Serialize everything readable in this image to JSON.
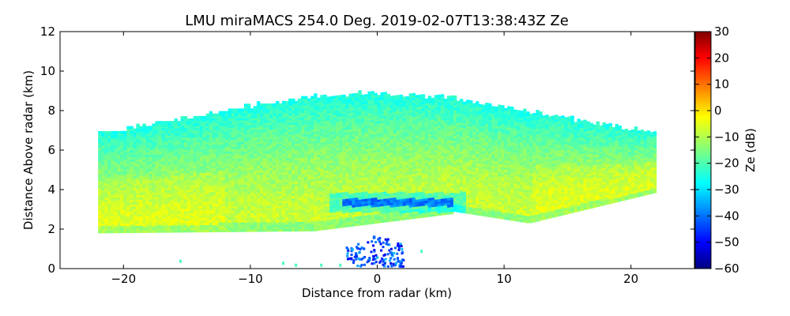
{
  "chart_data": {
    "type": "heatmap",
    "title": "LMU miraMACS 254.0 Deg. 2019-02-07T13:38:43Z  Ze",
    "xlabel": "Distance from radar (km)",
    "ylabel": "Distance Above radar  (km)",
    "xlim": [
      -25,
      25
    ],
    "ylim": [
      0,
      12
    ],
    "xticks": [
      -20,
      -10,
      0,
      10,
      20
    ],
    "xtick_labels": [
      "−20",
      "−10",
      "0",
      "10",
      "20"
    ],
    "yticks": [
      0,
      2,
      4,
      6,
      8,
      10,
      12
    ],
    "ytick_labels": [
      "0",
      "2",
      "4",
      "6",
      "8",
      "10",
      "12"
    ],
    "colorbar": {
      "label": "Ze (dB)",
      "range": [
        -60,
        30
      ],
      "ticks": [
        -60,
        -50,
        -40,
        -30,
        -20,
        -10,
        0,
        10,
        20,
        30
      ],
      "tick_labels": [
        "−60",
        "−50",
        "−40",
        "−30",
        "−20",
        "−10",
        "0",
        "10",
        "20",
        "30"
      ],
      "colormap": "jet"
    },
    "field": {
      "echo_extent_x_km": [
        -22,
        22
      ],
      "cloud_base_left_km": 1.8,
      "cloud_top_center_km": 8.8,
      "cloud_top_edge_km": 6.8,
      "typical_ze_db": -12,
      "low_ze_band": {
        "x_km": [
          -3,
          6
        ],
        "y_km": [
          3.1,
          3.5
        ],
        "ze_db": -38
      }
    }
  }
}
